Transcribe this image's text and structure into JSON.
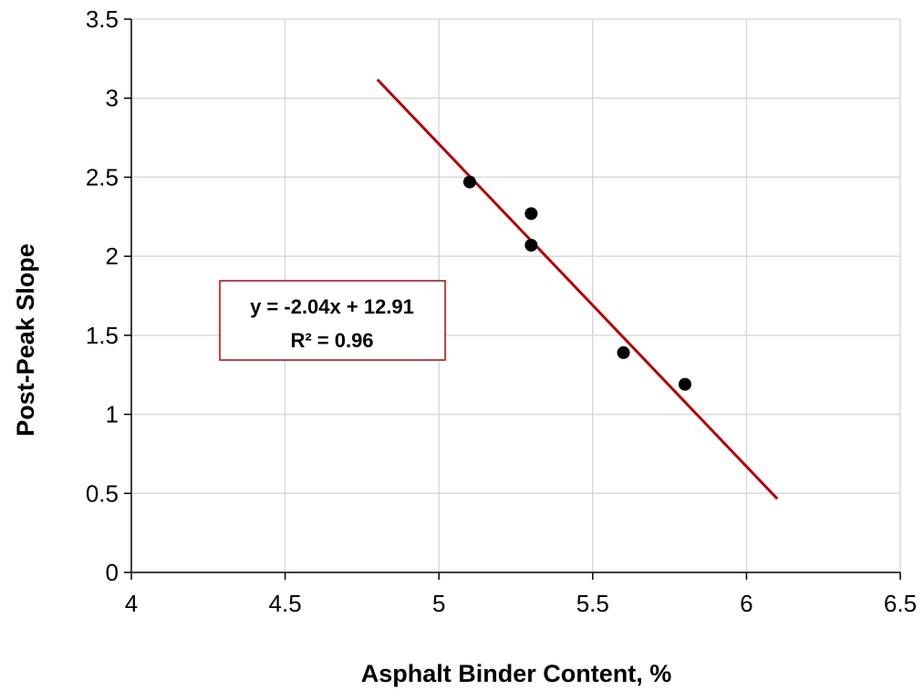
{
  "chart_data": {
    "type": "scatter",
    "title": "",
    "xlabel": "Asphalt Binder Content, %",
    "ylabel": "Post-Peak Slope",
    "xlim": [
      4,
      6.5
    ],
    "ylim": [
      0,
      3.5
    ],
    "xticks": [
      4,
      4.5,
      5,
      5.5,
      6,
      6.5
    ],
    "yticks": [
      0,
      0.5,
      1,
      1.5,
      2,
      2.5,
      3,
      3.5
    ],
    "grid": true,
    "series": [
      {
        "x": [
          5.1,
          5.3,
          5.3,
          5.6,
          5.8
        ],
        "y": [
          2.47,
          2.27,
          2.07,
          1.39,
          1.19
        ],
        "marker_color": "#000000"
      }
    ],
    "trendline": {
      "type": "linear",
      "slope": -2.04,
      "intercept": 12.91,
      "x_range": [
        4.8,
        6.1
      ],
      "color": "#c00000",
      "equation_label": "y = -2.04x + 12.91",
      "r2_label": "R² = 0.96"
    }
  }
}
